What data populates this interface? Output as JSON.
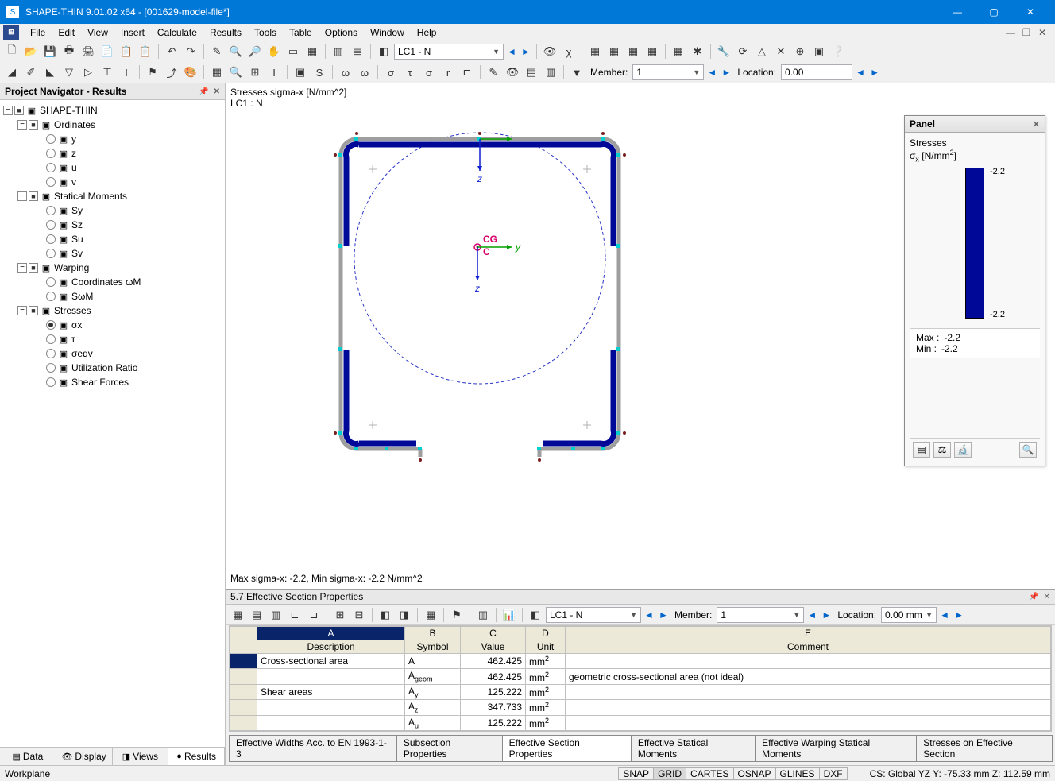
{
  "window": {
    "title": "SHAPE-THIN 9.01.02 x64 - [001629-model-file*]"
  },
  "menu": {
    "items": [
      "File",
      "Edit",
      "View",
      "Insert",
      "Calculate",
      "Results",
      "Tools",
      "Table",
      "Options",
      "Window",
      "Help"
    ]
  },
  "toolbar1": {
    "loadcase_selector": "LC1 - N"
  },
  "toolbar2": {
    "member_label": "Member:",
    "member_value": "1",
    "location_label": "Location:",
    "location_value": "0.00"
  },
  "navigator": {
    "title": "Project Navigator - Results",
    "root": "SHAPE-THIN",
    "groups": [
      {
        "label": "Ordinates",
        "children": [
          "y",
          "z",
          "u",
          "v"
        ]
      },
      {
        "label": "Statical Moments",
        "children": [
          "Sy",
          "Sz",
          "Su",
          "Sv"
        ]
      },
      {
        "label": "Warping",
        "children": [
          "Coordinates ωM",
          "SωM"
        ]
      },
      {
        "label": "Stresses",
        "children": [
          "σx",
          "τ",
          "σeqv",
          "Utilization Ratio",
          "Shear Forces"
        ],
        "selected": 0
      }
    ],
    "tabs": [
      "Data",
      "Display",
      "Views",
      "Results"
    ],
    "active_tab": 3
  },
  "viewport": {
    "label_line1": "Stresses sigma-x [N/mm^2]",
    "label_line2": "LC1 : N",
    "footer": "Max sigma-x: -2.2, Min sigma-x: -2.2 N/mm^2",
    "cg_label": "CG",
    "c_label": "C",
    "axis_y": "y",
    "axis_z": "z",
    "axis_z2": "z"
  },
  "panel": {
    "title": "Panel",
    "stresses_label": "Stresses",
    "unit_label": "σx [N/mm²]",
    "top_value": "-2.2",
    "bottom_value": "-2.2",
    "max_label": "Max  :",
    "max_value": "-2.2",
    "min_label": "Min   :",
    "min_value": "-2.2",
    "bar_color": "#000898"
  },
  "table_panel": {
    "title": "5.7 Effective Section Properties",
    "tb_loadcase": "LC1 - N",
    "tb_member_label": "Member:",
    "tb_member_value": "1",
    "tb_location_label": "Location:",
    "tb_location_value": "0.00 mm",
    "cols": [
      "A",
      "B",
      "C",
      "D",
      "E"
    ],
    "headers": [
      "Description",
      "Symbol",
      "Value",
      "Unit",
      "Comment"
    ],
    "rows": [
      {
        "desc": "Cross-sectional area",
        "sym": "A",
        "val": "462.425",
        "unit": "mm²",
        "comment": ""
      },
      {
        "desc": "",
        "sym": "Ageom",
        "val": "462.425",
        "unit": "mm²",
        "comment": "geometric cross-sectional area (not ideal)"
      },
      {
        "desc": "Shear areas",
        "sym": "Ay",
        "val": "125.222",
        "unit": "mm²",
        "comment": ""
      },
      {
        "desc": "",
        "sym": "Az",
        "val": "347.733",
        "unit": "mm²",
        "comment": ""
      },
      {
        "desc": "",
        "sym": "Au",
        "val": "125.222",
        "unit": "mm²",
        "comment": ""
      }
    ],
    "tabs": [
      "Effective Widths Acc. to EN 1993-1-3",
      "Subsection Properties",
      "Effective Section Properties",
      "Effective Statical Moments",
      "Effective Warping Statical Moments",
      "Stresses on Effective Section"
    ],
    "active_tab": 2
  },
  "statusbar": {
    "left": "Workplane",
    "toggles": [
      "SNAP",
      "GRID",
      "CARTES",
      "OSNAP",
      "GLINES",
      "DXF"
    ],
    "active_toggles": [
      1
    ],
    "right": "CS: Global YZ Y:   -75.33 mm    Z:   112.59 mm"
  },
  "colors": {
    "title_bg": "#0078d7",
    "accent": "#0078d7",
    "stress_line": "#000898",
    "section_line": "#9e9e9e",
    "circle": "#2935c9"
  }
}
